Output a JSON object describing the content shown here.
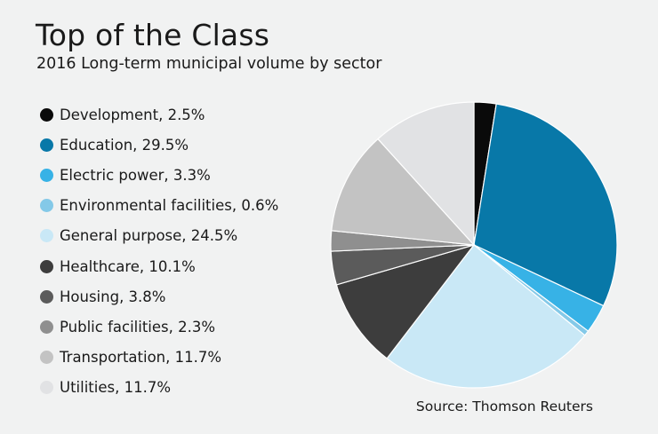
{
  "title": "Top of the Class",
  "subtitle": "2016 Long-term municipal volume by sector",
  "source": "Source: Thomson Reuters",
  "chart_data": {
    "type": "pie",
    "title": "Top of the Class",
    "subtitle": "2016 Long-term municipal volume by sector",
    "unit": "%",
    "start": "12 o'clock, clockwise",
    "legend_position": "left",
    "slices": [
      {
        "name": "Development",
        "value": 2.5,
        "label": "Development, 2.5%",
        "color": "#0a0a0a"
      },
      {
        "name": "Education",
        "value": 29.5,
        "label": "Education, 29.5%",
        "color": "#0878a8"
      },
      {
        "name": "Electric power",
        "value": 3.3,
        "label": "Electric power, 3.3%",
        "color": "#37b2e6"
      },
      {
        "name": "Environmental facilities",
        "value": 0.6,
        "label": "Environmental facilities, 0.6%",
        "color": "#84c9e8"
      },
      {
        "name": "General purpose",
        "value": 24.5,
        "label": "General purpose, 24.5%",
        "color": "#c9e8f6"
      },
      {
        "name": "Healthcare",
        "value": 10.1,
        "label": "Healthcare, 10.1%",
        "color": "#3d3d3d"
      },
      {
        "name": "Housing",
        "value": 3.8,
        "label": "Housing, 3.8%",
        "color": "#5b5b5b"
      },
      {
        "name": "Public facilities",
        "value": 2.3,
        "label": "Public facilities, 2.3%",
        "color": "#8f8f8f"
      },
      {
        "name": "Transportation",
        "value": 11.7,
        "label": "Transportation, 11.7%",
        "color": "#c3c3c3"
      },
      {
        "name": "Utilities",
        "value": 11.7,
        "label": "Utilities, 11.7%",
        "color": "#e1e2e4"
      }
    ]
  }
}
